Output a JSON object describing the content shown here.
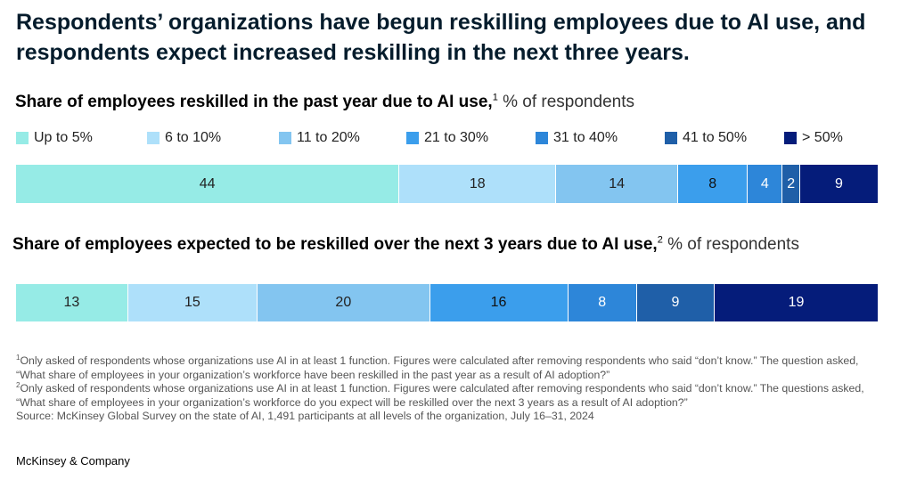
{
  "title": "Respondents’ organizations have begun reskilling employees due to AI use, and respondents expect increased reskilling in the next three years.",
  "colors": [
    "#96ebe6",
    "#aee0fa",
    "#83c5f0",
    "#3b9eec",
    "#2d86d9",
    "#1f5fa8",
    "#051c7a"
  ],
  "text_colors": [
    "#222222",
    "#222222",
    "#222222",
    "#111111",
    "#ffffff",
    "#ffffff",
    "#ffffff"
  ],
  "chart_data": [
    {
      "type": "bar",
      "stacked": "horizontal-100%",
      "title": "Share of employees reskilled in the past year due to AI use,",
      "title_footnote": "1",
      "unit": "% of respondents",
      "categories": [
        "Up to 5%",
        "6 to 10%",
        "11 to 20%",
        "21 to 30%",
        "31 to 40%",
        "41 to 50%",
        "> 50%"
      ],
      "values": [
        44,
        18,
        14,
        8,
        4,
        2,
        9
      ]
    },
    {
      "type": "bar",
      "stacked": "horizontal-100%",
      "title": "Share of employees expected to be reskilled over the next 3 years due to AI use,",
      "title_footnote": "2",
      "unit": "% of respondents",
      "categories": [
        "Up to 5%",
        "6 to 10%",
        "11 to 20%",
        "21 to 30%",
        "31 to 40%",
        "41 to 50%",
        "> 50%"
      ],
      "values": [
        13,
        15,
        20,
        16,
        8,
        9,
        19
      ]
    }
  ],
  "footnotes": [
    {
      "marker": "1",
      "text": "Only asked of respondents whose organizations use AI in at least 1 function. Figures were calculated after removing respondents who said “don’t know.” The question asked, “What share of employees in your organization’s workforce have been reskilled in the past year as a result of AI adoption?”"
    },
    {
      "marker": "2",
      "text": "Only asked of respondents whose organizations use AI in at least 1 function. Figures were calculated after removing respondents who said “don’t know.” The questions asked, “What share of employees in your organization’s workforce do you expect will be reskilled over the next 3 years as a result of AI adoption?”"
    }
  ],
  "source": "Source: McKinsey Global Survey on the state of AI, 1,491 participants at all levels of the organization, July 16–31, 2024",
  "brand": "McKinsey & Company"
}
